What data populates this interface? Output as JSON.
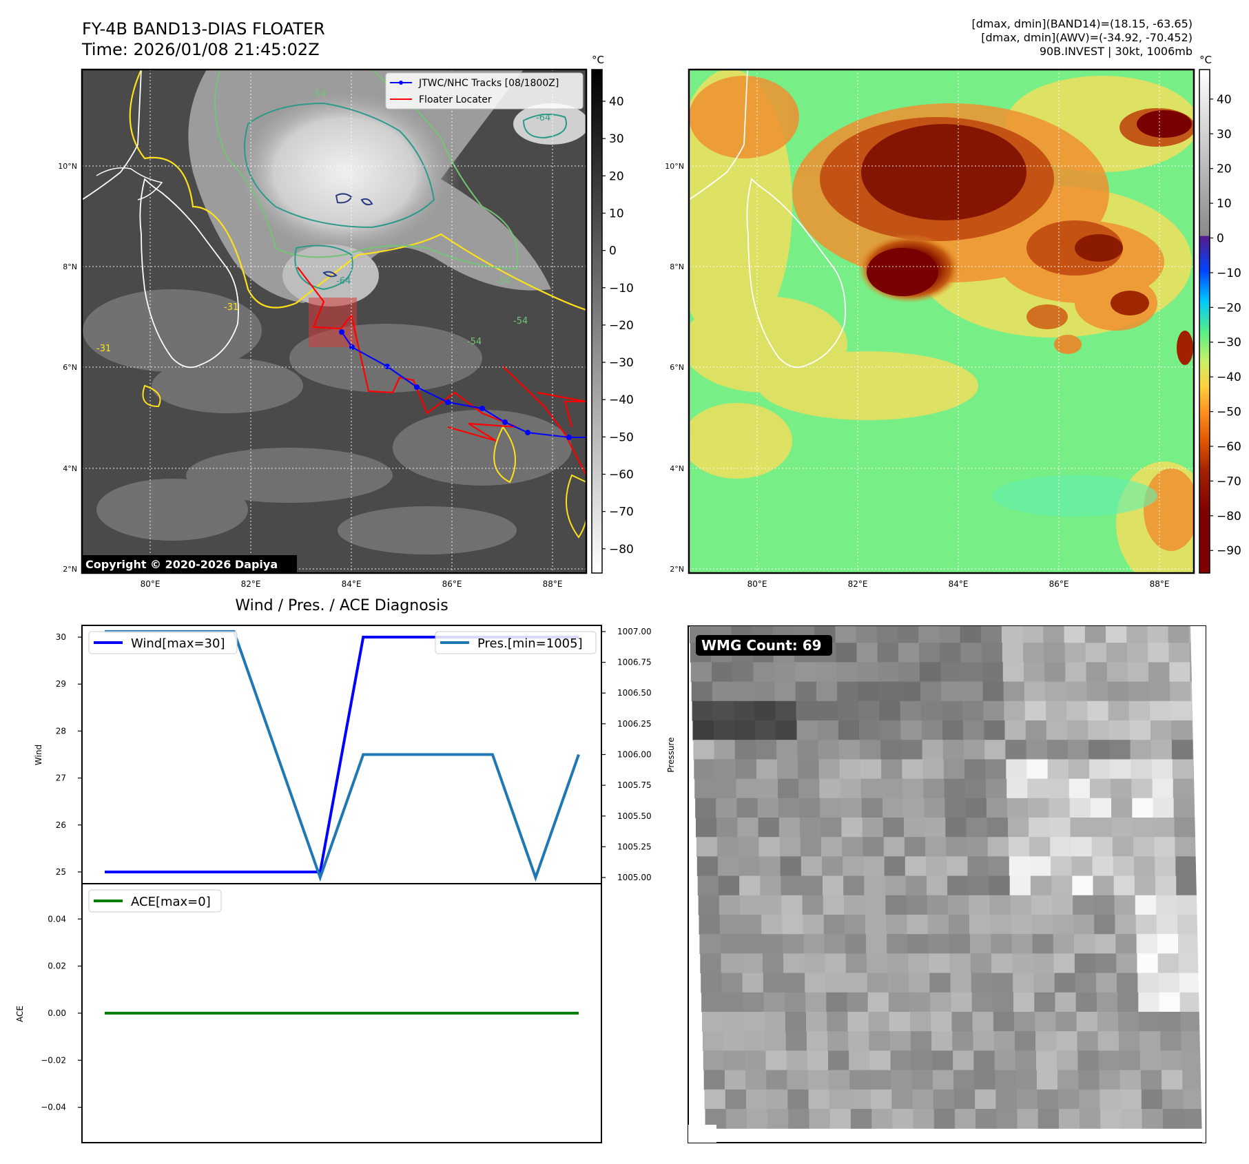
{
  "header": {
    "title_line1": "FY-4B BAND13-DIAS FLOATER",
    "title_line2": "Time: 2026/01/08 21:45:02Z",
    "info_line1": "[dmax, dmin](BAND14)=(18.15, -63.65)",
    "info_line2": "[dmax, dmin](AWV)=(-34.92, -70.452)",
    "info_line3": "90B.INVEST | 30kt, 1006mb"
  },
  "map_left": {
    "lat_ticks": [
      "10°N",
      "8°N",
      "6°N",
      "4°N",
      "2°N"
    ],
    "lon_ticks": [
      "80°E",
      "82°E",
      "84°E",
      "86°E",
      "88°E"
    ],
    "legend": {
      "track": "JTWC/NHC Tracks [08/1800Z]",
      "locator": "Floater Locater"
    },
    "copyright": "Copyright © 2020-2026 Dapiya",
    "colorbar": {
      "unit": "°C",
      "ticks": [
        "40",
        "30",
        "20",
        "10",
        "0",
        "−10",
        "−20",
        "−30",
        "−40",
        "−50",
        "−60",
        "−70",
        "−80"
      ]
    },
    "contour_labels": [
      "-54",
      "-64",
      "-54",
      "-54",
      "-31",
      "-31",
      "-64",
      "-54"
    ],
    "colors": {
      "track": "#0000ff",
      "locator": "#ff0000",
      "coast": "#ffffff",
      "contour_warm": "#ffe119",
      "contour_cool": "#2a8a8a",
      "contour_cold": "#2a3a80"
    }
  },
  "map_right": {
    "lat_ticks": [
      "10°N",
      "8°N",
      "6°N",
      "4°N",
      "2°N"
    ],
    "lon_ticks": [
      "80°E",
      "82°E",
      "84°E",
      "86°E",
      "88°E"
    ],
    "colorbar": {
      "unit": "°C",
      "ticks": [
        "40",
        "30",
        "20",
        "10",
        "0",
        "−10",
        "−20",
        "−30",
        "−40",
        "−50",
        "−60",
        "−70",
        "−80",
        "−90"
      ]
    }
  },
  "diag": {
    "title": "Wind / Pres. / ACE Diagnosis",
    "wind_ylabel": "Wind",
    "pressure_ylabel": "Pressure",
    "ace_ylabel": "ACE",
    "wind_legend": "Wind[max=30]",
    "pressure_legend": "Pres.[min=1005]",
    "ace_legend": "ACE[max=0]",
    "wind_ticks": [
      "30",
      "29",
      "28",
      "27",
      "26",
      "25"
    ],
    "pressure_ticks": [
      "1007.00",
      "1006.75",
      "1006.50",
      "1006.25",
      "1006.00",
      "1005.75",
      "1005.50",
      "1005.25",
      "1005.00"
    ],
    "ace_ticks": [
      "0.04",
      "0.02",
      "0.00",
      "−0.02",
      "−0.04"
    ],
    "colors": {
      "wind": "#0000ff",
      "pressure": "#1f77b4",
      "ace": "#008000"
    }
  },
  "wmg": {
    "label": "WMG Count: 69"
  },
  "chart_data": [
    {
      "type": "line",
      "title": "Wind / Pres. / ACE Diagnosis",
      "x": [
        0,
        1,
        2,
        3,
        4,
        5,
        6,
        7,
        8,
        9,
        10,
        11
      ],
      "series": [
        {
          "name": "Wind[max=30]",
          "axis": "left",
          "values": [
            25,
            25,
            25,
            25,
            25,
            25,
            30,
            30,
            30,
            30,
            30,
            30
          ]
        },
        {
          "name": "Pres.[min=1005]",
          "axis": "right",
          "values": [
            1007,
            1007,
            1007,
            1007,
            1006,
            1005,
            1006,
            1006,
            1006,
            1006,
            1005,
            1006
          ]
        }
      ],
      "ylabel": "Wind",
      "ylim": [
        24.75,
        30.25
      ],
      "y2label": "Pressure",
      "y2lim": [
        1004.95,
        1007.05
      ]
    },
    {
      "type": "line",
      "x": [
        0,
        1,
        2,
        3,
        4,
        5,
        6,
        7,
        8,
        9,
        10,
        11
      ],
      "series": [
        {
          "name": "ACE[max=0]",
          "values": [
            0,
            0,
            0,
            0,
            0,
            0,
            0,
            0,
            0,
            0,
            0,
            0
          ]
        }
      ],
      "ylabel": "ACE",
      "ylim": [
        -0.055,
        0.055
      ]
    }
  ]
}
